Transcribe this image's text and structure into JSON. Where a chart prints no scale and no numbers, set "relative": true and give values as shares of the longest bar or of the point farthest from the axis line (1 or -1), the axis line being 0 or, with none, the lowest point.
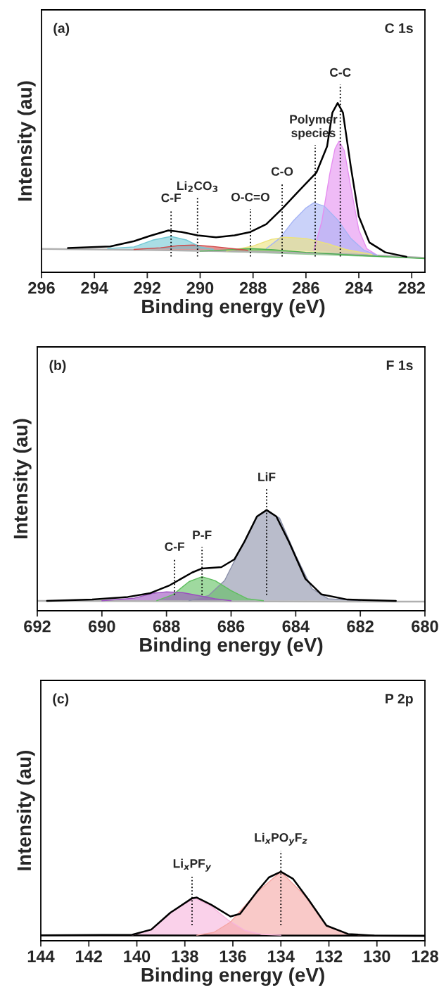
{
  "chart_data": [
    {
      "type": "area",
      "title": "(a)",
      "subtitle": "C 1s",
      "xlabel": "Binding energy (eV)",
      "ylabel": "Intensity (au)",
      "relative": true,
      "legend": false,
      "xlim": [
        296,
        281.5
      ],
      "xticks": [
        296,
        294,
        292,
        290,
        288,
        286,
        284,
        282
      ],
      "ref_lines": [
        {
          "axis": "x",
          "value": 291.1,
          "label": "C-F",
          "line_style": "dotted",
          "color": "#000000"
        },
        {
          "axis": "x",
          "value": 290.1,
          "label": "Li$_{2}$CO$_{3}$",
          "line_style": "dotted",
          "color": "#000000"
        },
        {
          "axis": "x",
          "value": 288.1,
          "label": "O-C=O",
          "line_style": "dotted",
          "color": "#000000"
        },
        {
          "axis": "x",
          "value": 286.9,
          "label": "C-O",
          "line_style": "dotted",
          "color": "#000000"
        },
        {
          "axis": "x",
          "value": 285.65,
          "label": "Polymer\nspecies",
          "line_style": "dotted",
          "color": "#000000"
        },
        {
          "axis": "x",
          "value": 284.7,
          "label": "C-C",
          "line_style": "dotted",
          "color": "#000000"
        }
      ],
      "series": [
        {
          "type": "line",
          "color": "#b0b0b0",
          "x": [
            296,
            292,
            288,
            285,
            283,
            281.5
          ],
          "values": [
            0.138,
            0.132,
            0.122,
            0.11,
            0.098,
            0.085
          ]
        },
        {
          "color": "#e58ef0",
          "x": [
            285.7,
            285.4,
            285.1,
            284.9,
            284.75,
            284.55,
            284.3,
            284.0,
            283.7,
            283.3
          ],
          "values": [
            0.13,
            0.3,
            0.58,
            0.73,
            0.775,
            0.72,
            0.5,
            0.25,
            0.14,
            0.1
          ]
        },
        {
          "color": "#a6b4f5",
          "x": [
            287.5,
            287.0,
            286.5,
            286.0,
            285.7,
            285.3,
            284.8,
            284.3,
            283.8,
            283.3
          ],
          "values": [
            0.14,
            0.2,
            0.3,
            0.38,
            0.411,
            0.39,
            0.31,
            0.2,
            0.13,
            0.1
          ]
        },
        {
          "color": "#ece27a",
          "x": [
            289,
            288,
            287.3,
            286.8,
            286.0,
            285.2,
            284.5,
            283.5
          ],
          "values": [
            0.125,
            0.155,
            0.195,
            0.207,
            0.2,
            0.17,
            0.135,
            0.105
          ]
        },
        {
          "color": "#4caf50",
          "x": [
            290,
            289,
            288.1,
            287.2,
            286,
            284,
            281.5
          ],
          "values": [
            0.125,
            0.132,
            0.14,
            0.133,
            0.118,
            0.1,
            0.081
          ]
        },
        {
          "color": "#d04848",
          "x": [
            292.5,
            291.5,
            290.8,
            290.2,
            289.5,
            288.8,
            288.2
          ],
          "values": [
            0.135,
            0.145,
            0.158,
            0.161,
            0.152,
            0.14,
            0.13
          ]
        },
        {
          "color": "#72c8d4",
          "x": [
            293.5,
            292.5,
            291.8,
            291.1,
            290.5,
            290.0,
            289.5
          ],
          "values": [
            0.14,
            0.15,
            0.19,
            0.212,
            0.19,
            0.15,
            0.135
          ]
        },
        {
          "type": "line",
          "color": "#000000",
          "x": [
            295.0,
            293.4,
            292.5,
            291.9,
            291.2,
            290.7,
            290.1,
            289.4,
            288.7,
            288.1,
            287.5,
            286.9,
            286.3,
            285.6,
            285.2,
            285.0,
            284.8,
            284.6,
            284.3,
            284.0,
            283.6,
            283.0,
            282.2
          ],
          "values": [
            0.143,
            0.153,
            0.184,
            0.215,
            0.247,
            0.238,
            0.218,
            0.207,
            0.218,
            0.238,
            0.284,
            0.376,
            0.475,
            0.59,
            0.744,
            0.943,
            1.0,
            0.943,
            0.621,
            0.33,
            0.176,
            0.118,
            0.092
          ]
        }
      ]
    },
    {
      "type": "area",
      "title": "(b)",
      "subtitle": "F 1s",
      "xlabel": "Binding energy (eV)",
      "ylabel": "Intensity (au)",
      "relative": true,
      "legend": false,
      "xlim": [
        692,
        680
      ],
      "xticks": [
        692,
        690,
        688,
        686,
        684,
        682,
        680
      ],
      "ref_lines": [
        {
          "axis": "x",
          "value": 687.75,
          "label": "C-F",
          "line_style": "dotted",
          "color": "#000000"
        },
        {
          "axis": "x",
          "value": 686.9,
          "label": "P-F",
          "line_style": "dotted",
          "color": "#000000"
        },
        {
          "axis": "x",
          "value": 684.9,
          "label": "LiF",
          "line_style": "dotted",
          "color": "#000000"
        }
      ],
      "series": [
        {
          "type": "line",
          "color": "#b0b0b0",
          "x": [
            692,
            680
          ],
          "values": [
            0.098,
            0.09
          ]
        },
        {
          "color": "#8a8fa8",
          "x": [
            687.3,
            686.7,
            686.2,
            685.7,
            685.2,
            684.9,
            684.5,
            684.0,
            683.5,
            683.0,
            682.0
          ],
          "values": [
            0.1,
            0.15,
            0.3,
            0.62,
            0.93,
            1.0,
            0.92,
            0.55,
            0.22,
            0.12,
            0.1
          ]
        },
        {
          "color": "#5fbf5f",
          "x": [
            688.3,
            687.8,
            687.3,
            686.9,
            686.5,
            686.0,
            685.5,
            685.0
          ],
          "values": [
            0.1,
            0.16,
            0.29,
            0.338,
            0.3,
            0.2,
            0.12,
            0.1
          ]
        },
        {
          "color": "#9b4fc0",
          "x": [
            690,
            689,
            688.4,
            688.0,
            687.5,
            687.0,
            686.5,
            686.0
          ],
          "values": [
            0.1,
            0.125,
            0.175,
            0.188,
            0.18,
            0.15,
            0.12,
            0.1
          ]
        },
        {
          "type": "line",
          "color": "#000000",
          "x": [
            691.7,
            690.3,
            689.2,
            688.5,
            687.9,
            687.2,
            686.9,
            686.3,
            685.9,
            685.6,
            685.2,
            684.9,
            684.6,
            684.2,
            683.7,
            683.2,
            682.4,
            680.9
          ],
          "values": [
            0.098,
            0.111,
            0.137,
            0.175,
            0.253,
            0.381,
            0.42,
            0.433,
            0.51,
            0.678,
            0.936,
            1.0,
            0.936,
            0.678,
            0.317,
            0.162,
            0.111,
            0.098
          ]
        }
      ]
    },
    {
      "type": "area",
      "title": "(c)",
      "subtitle": "P 2p",
      "xlabel": "Binding energy (eV)",
      "ylabel": "Intensity (au)",
      "relative": true,
      "legend": false,
      "xlim": [
        144,
        128
      ],
      "xticks": [
        144,
        142,
        140,
        138,
        136,
        134,
        132,
        130,
        128
      ],
      "ref_lines": [
        {
          "axis": "x",
          "value": 137.7,
          "label": "Li$_{x}$PF$_{y}$",
          "line_style": "dotted",
          "color": "#000000"
        },
        {
          "axis": "x",
          "value": 134.0,
          "label": "Li$_{x}$PO$_{y}$F$_{z}$",
          "line_style": "dotted",
          "color": "#000000"
        }
      ],
      "series": [
        {
          "type": "line",
          "color": "#000000",
          "x": [
            144,
            128
          ],
          "values": [
            0.079,
            0.072
          ]
        },
        {
          "color": "#f7b3dc",
          "x": [
            140.2,
            139.4,
            138.6,
            137.6,
            136.9,
            136.2,
            135.5,
            134.8,
            134.0
          ],
          "values": [
            0.08,
            0.16,
            0.405,
            0.62,
            0.5,
            0.3,
            0.15,
            0.09,
            0.08
          ]
        },
        {
          "color": "#f5a5a3",
          "x": [
            137.5,
            136.8,
            136.1,
            135.0,
            134.0,
            133.0,
            132.1,
            131.2,
            130.2
          ],
          "values": [
            0.08,
            0.12,
            0.27,
            0.7,
            1.0,
            0.65,
            0.22,
            0.095,
            0.075
          ]
        },
        {
          "type": "line",
          "color": "#000000",
          "x": [
            144,
            140.2,
            139.4,
            138.6,
            137.7,
            137.5,
            136.9,
            136.1,
            135.7,
            135.0,
            134.5,
            134.0,
            133.5,
            132.85,
            132.1,
            131.2,
            130.1,
            128
          ],
          "values": [
            0.079,
            0.087,
            0.162,
            0.408,
            0.615,
            0.626,
            0.521,
            0.351,
            0.389,
            0.709,
            0.917,
            1.0,
            0.898,
            0.596,
            0.219,
            0.098,
            0.075,
            0.072
          ]
        }
      ]
    }
  ]
}
